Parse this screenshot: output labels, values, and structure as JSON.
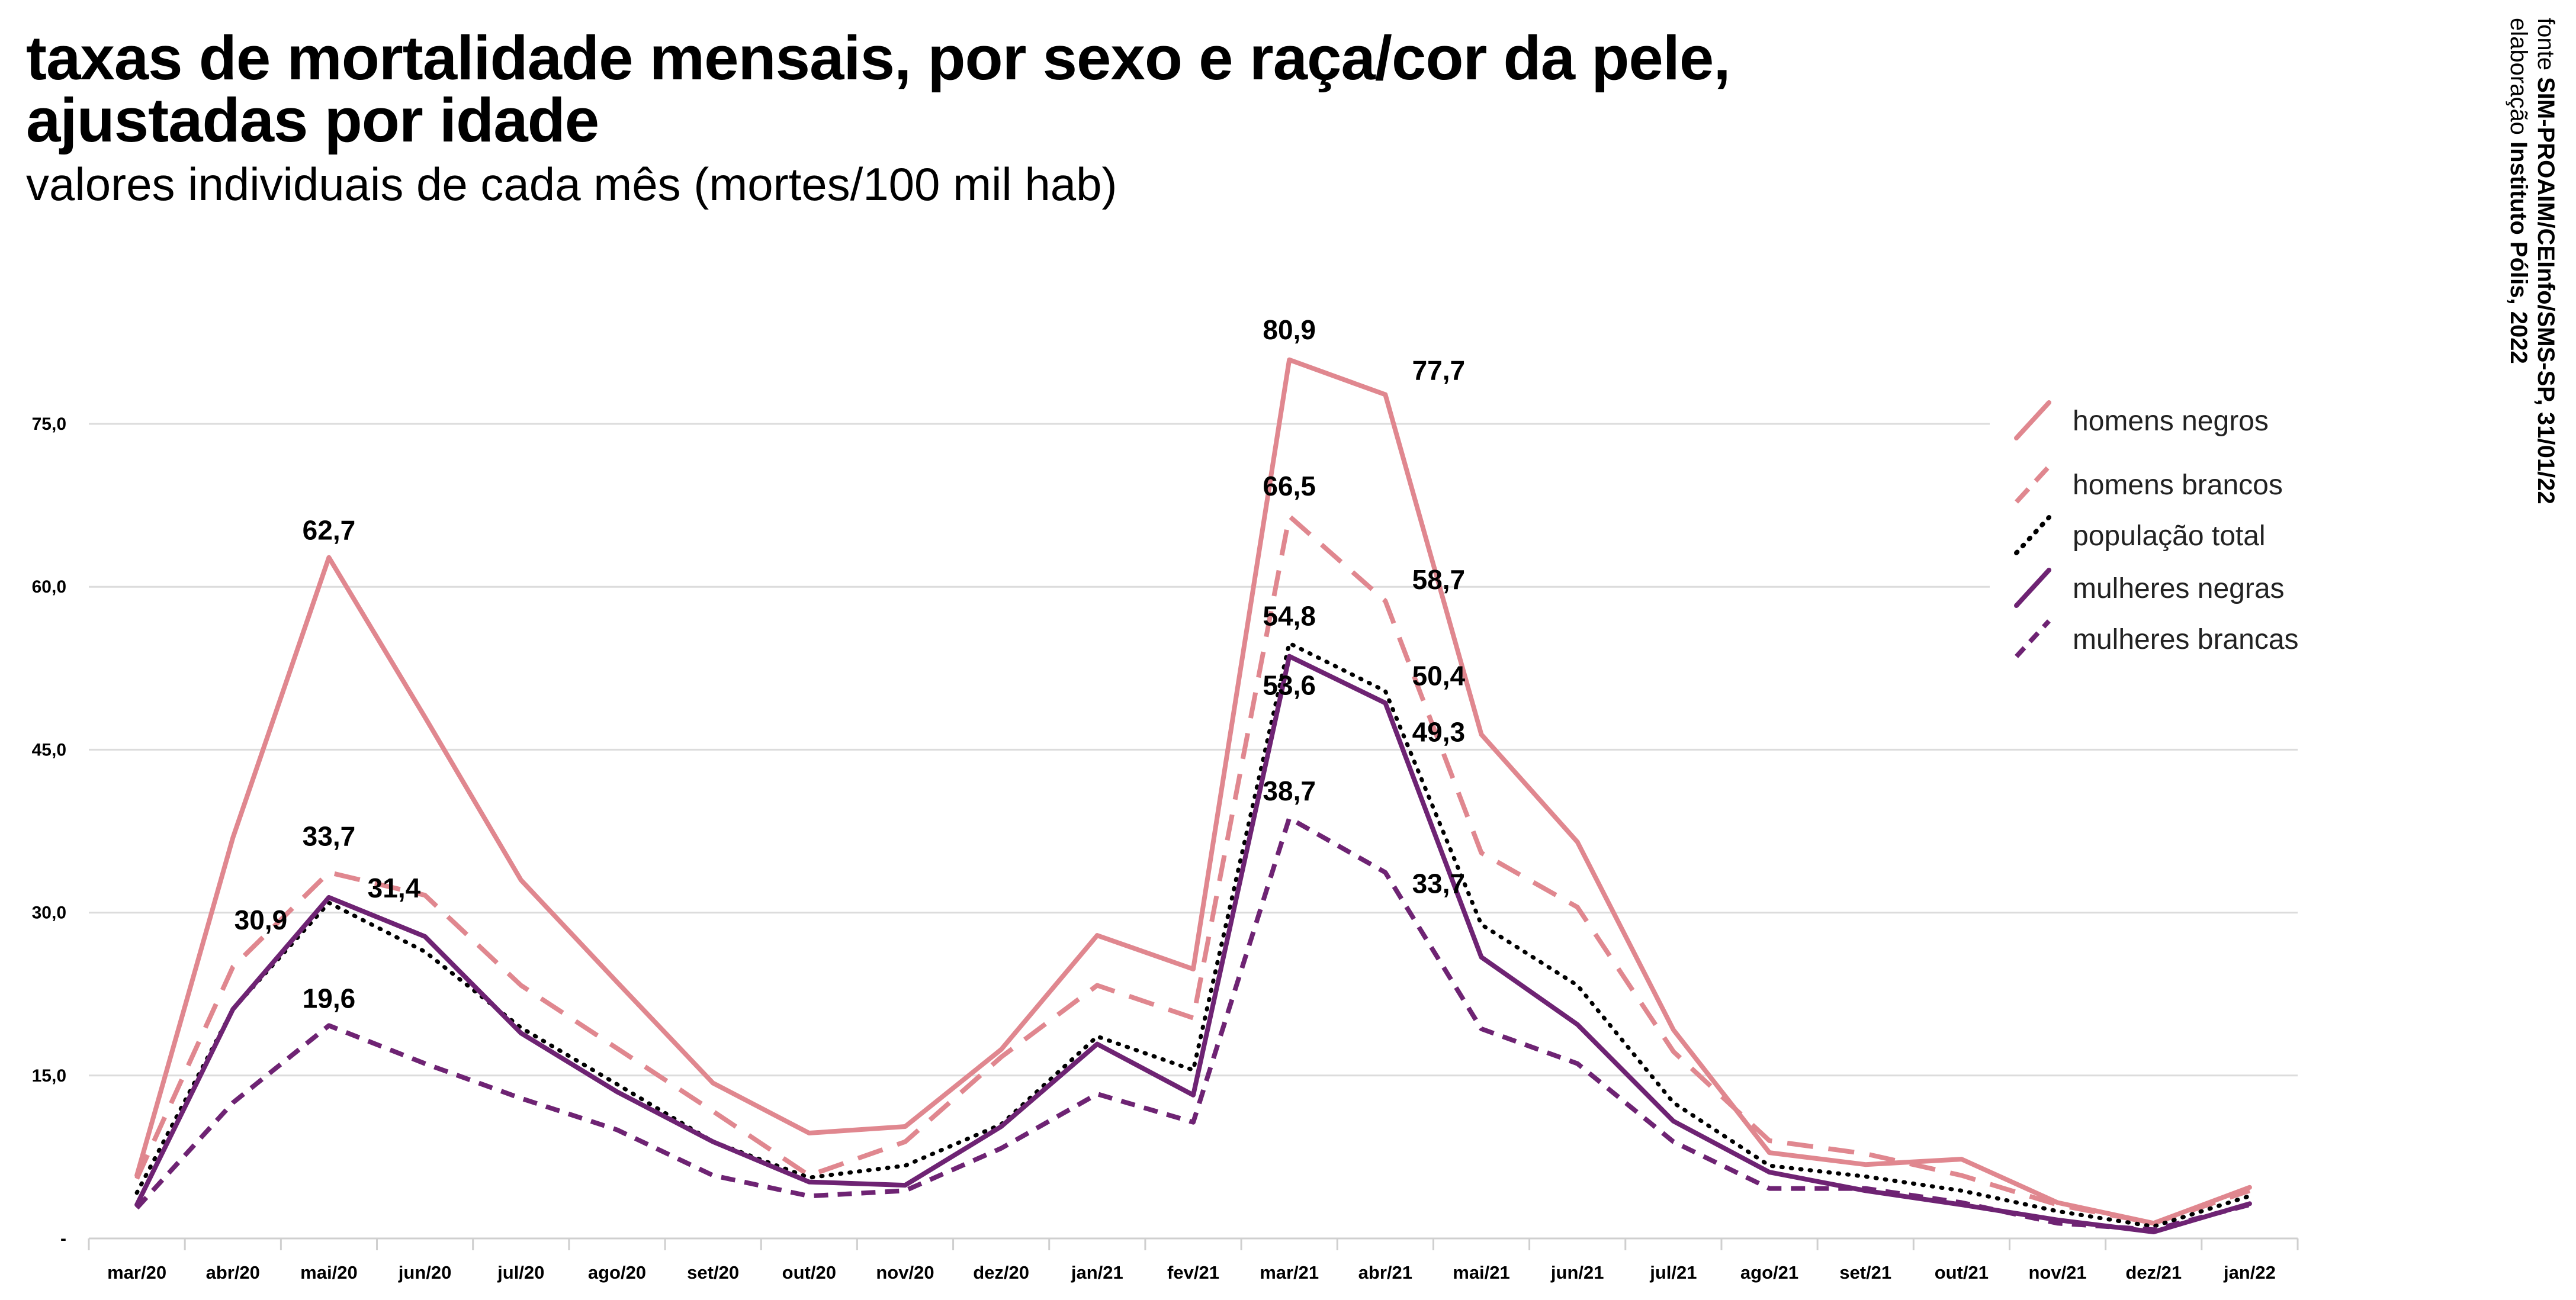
{
  "title_lines": [
    "taxas de mortalidade mensais, por sexo e raça/cor da pele,",
    "ajustadas por idade"
  ],
  "subtitle": "valores individuais de cada mês (mortes/100 mil hab)",
  "source": {
    "fonte_label": "fonte",
    "fonte_value": "SIM-PROAIM/CEInfo/SMS-SP, 31/01/22",
    "elab_label": "elaboração",
    "elab_value": "Instituto Pólis, 2022"
  },
  "chart_data": {
    "type": "line",
    "title": "taxas de mortalidade mensais, por sexo e raça/cor da pele, ajustadas por idade",
    "subtitle": "valores individuais de cada mês (mortes/100 mil hab)",
    "categories": [
      "mar/20",
      "abr/20",
      "mai/20",
      "jun/20",
      "jul/20",
      "ago/20",
      "set/20",
      "out/20",
      "nov/20",
      "dez/20",
      "jan/21",
      "fev/21",
      "mar/21",
      "abr/21",
      "mai/21",
      "jun/21",
      "jul/21",
      "ago/21",
      "set/21",
      "out/21",
      "nov/21",
      "dez/21",
      "jan/22"
    ],
    "ylim": [
      0,
      80
    ],
    "yticks": [
      0,
      15,
      30,
      45,
      60,
      75
    ],
    "ytick_labels": [
      "-",
      "15,0",
      "30,0",
      "45,0",
      "60,0",
      "75,0"
    ],
    "grid": true,
    "legend_position": "right",
    "series": [
      {
        "name": "homens negros",
        "color": "#e0878f",
        "dash": "solid",
        "values": [
          5.8,
          36.9,
          62.7,
          48.0,
          33.0,
          23.6,
          14.3,
          9.7,
          10.3,
          17.4,
          27.9,
          24.8,
          80.9,
          77.7,
          46.4,
          36.5,
          19.2,
          7.9,
          6.8,
          7.3,
          3.3,
          1.4,
          4.7
        ]
      },
      {
        "name": "homens brancos",
        "color": "#e0878f",
        "dash": "long",
        "values": [
          5.5,
          25.0,
          33.7,
          31.6,
          23.3,
          17.5,
          11.7,
          5.8,
          8.9,
          16.7,
          23.3,
          20.3,
          66.5,
          58.7,
          35.5,
          30.5,
          17.2,
          9.0,
          7.8,
          5.8,
          3.1,
          1.4,
          4.4
        ]
      },
      {
        "name": "população total",
        "color": "#000000",
        "dash": "dotted",
        "values": [
          4.2,
          21.1,
          30.9,
          26.4,
          19.4,
          14.2,
          8.9,
          5.6,
          6.7,
          10.5,
          18.6,
          15.5,
          54.8,
          50.4,
          28.9,
          23.3,
          12.5,
          6.7,
          5.7,
          4.4,
          2.5,
          1.1,
          3.9
        ]
      },
      {
        "name": "mulheres negras",
        "color": "#6e2373",
        "dash": "solid",
        "values": [
          3.1,
          21.1,
          31.4,
          27.8,
          18.9,
          13.5,
          8.9,
          5.2,
          4.9,
          10.3,
          17.9,
          13.2,
          53.6,
          49.3,
          25.9,
          19.7,
          10.8,
          6.1,
          4.4,
          3.1,
          1.7,
          0.6,
          3.2
        ]
      },
      {
        "name": "mulheres brancas",
        "color": "#6e2373",
        "dash": "short",
        "values": [
          2.8,
          12.5,
          19.6,
          16.1,
          12.9,
          10.0,
          5.8,
          3.9,
          4.4,
          8.3,
          13.3,
          10.7,
          38.7,
          33.7,
          19.3,
          16.1,
          8.9,
          4.6,
          4.6,
          3.3,
          1.4,
          0.8,
          3.1
        ]
      }
    ],
    "data_labels": [
      {
        "series": 0,
        "index": 2,
        "text": "62,7"
      },
      {
        "series": 1,
        "index": 2,
        "text": "33,7"
      },
      {
        "series": 3,
        "index": 2,
        "text": "31,4"
      },
      {
        "series": 2,
        "index": 2,
        "text": "30,9"
      },
      {
        "series": 4,
        "index": 2,
        "text": "19,6"
      },
      {
        "series": 0,
        "index": 12,
        "text": "80,9"
      },
      {
        "series": 1,
        "index": 12,
        "text": "66,5"
      },
      {
        "series": 2,
        "index": 12,
        "text": "54,8"
      },
      {
        "series": 3,
        "index": 12,
        "text": "53,6"
      },
      {
        "series": 4,
        "index": 12,
        "text": "38,7"
      },
      {
        "series": 0,
        "index": 13,
        "text": "77,7"
      },
      {
        "series": 1,
        "index": 13,
        "text": "58,7"
      },
      {
        "series": 2,
        "index": 13,
        "text": "50,4"
      },
      {
        "series": 3,
        "index": 13,
        "text": "49,3"
      },
      {
        "series": 4,
        "index": 13,
        "text": "33,7"
      }
    ]
  }
}
